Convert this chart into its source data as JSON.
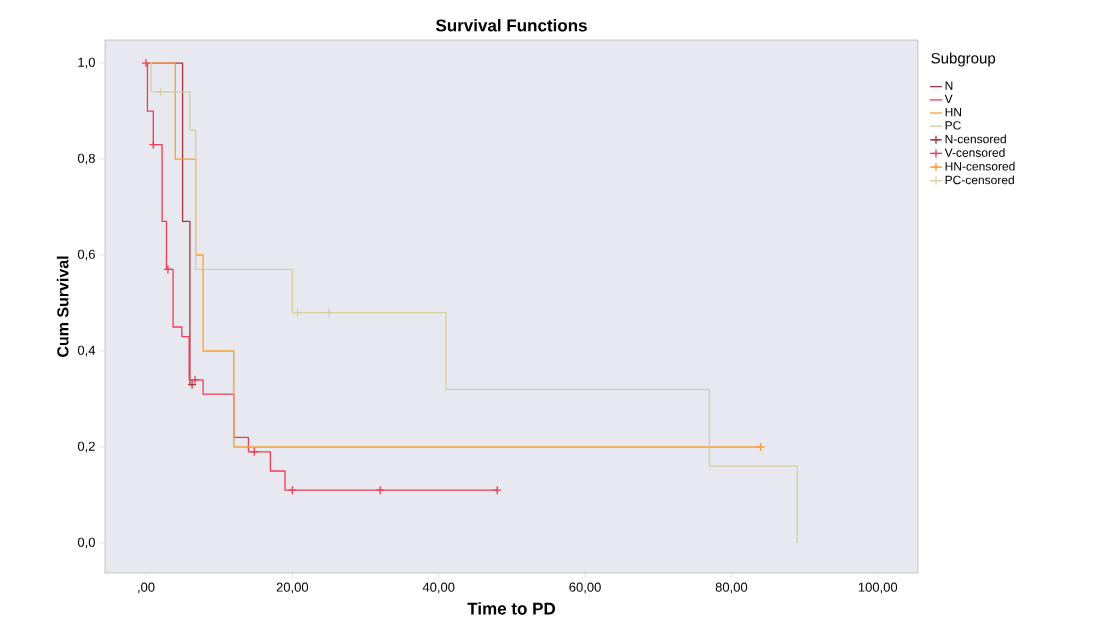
{
  "chart_data": {
    "type": "step",
    "title": "Survival Functions",
    "xlabel": "Time to PD",
    "ylabel": "Cum Survival",
    "legend_title": "Subgroup",
    "legend": "top right",
    "xlim": [
      -5.6,
      105.5
    ],
    "ylim": [
      -0.0625,
      1.048
    ],
    "xticks": [
      {
        "value": 0,
        "label": ",00"
      },
      {
        "value": 20,
        "label": "20,00"
      },
      {
        "value": 40,
        "label": "40,00"
      },
      {
        "value": 60,
        "label": "60,00"
      },
      {
        "value": 80,
        "label": "80,00"
      },
      {
        "value": 100,
        "label": "100,00"
      }
    ],
    "yticks": [
      {
        "value": 0,
        "label": "0,0"
      },
      {
        "value": 0.2,
        "label": "0,2"
      },
      {
        "value": 0.4,
        "label": "0,4"
      },
      {
        "value": 0.6,
        "label": "0,6"
      },
      {
        "value": 0.8,
        "label": "0,8"
      },
      {
        "value": 1,
        "label": "1,0"
      }
    ],
    "series": [
      {
        "name": "N",
        "marker": "none",
        "color": "#a8343c",
        "x": [
          0,
          5,
          6,
          6.3
        ],
        "values": [
          1,
          0.67,
          0.33,
          0.33
        ]
      },
      {
        "name": "V",
        "marker": "none",
        "color": "#f03c50",
        "x": [
          0,
          0.2,
          1,
          2.2,
          2.8,
          3.7,
          4.9,
          5.9,
          7.8,
          12,
          14,
          17,
          19,
          48
        ],
        "values": [
          1,
          0.9,
          0.83,
          0.67,
          0.57,
          0.45,
          0.43,
          0.34,
          0.31,
          0.22,
          0.19,
          0.15,
          0.11,
          0.11
        ]
      },
      {
        "name": "HN",
        "marker": "none",
        "color": "#f8a030",
        "x": [
          0,
          4,
          6.8,
          7.8,
          12,
          84
        ],
        "values": [
          1,
          0.8,
          0.6,
          0.4,
          0.2,
          0.2
        ]
      },
      {
        "name": "PC",
        "marker": "none",
        "color": "#d4cfa0",
        "x": [
          0,
          0.7,
          6,
          6.8,
          20,
          41,
          77,
          89
        ],
        "values": [
          1,
          0.94,
          0.86,
          0.57,
          0.48,
          0.32,
          0.16,
          0
        ]
      },
      {
        "name": "N-censored",
        "type": "scatter",
        "marker": "cross",
        "color": "#a8343c",
        "x": [
          6.3
        ],
        "values": [
          0.33
        ]
      },
      {
        "name": "V-censored",
        "type": "scatter",
        "marker": "cross",
        "color": "#f03c50",
        "x": [
          0,
          1,
          3,
          6.7,
          14.8,
          20,
          32,
          48
        ],
        "values": [
          1,
          0.83,
          0.57,
          0.34,
          0.19,
          0.11,
          0.11,
          0.11
        ]
      },
      {
        "name": "HN-censored",
        "type": "scatter",
        "marker": "cross",
        "color": "#f8a030",
        "x": [
          84
        ],
        "values": [
          0.2
        ]
      },
      {
        "name": "PC-censored",
        "type": "scatter",
        "marker": "cross",
        "color": "#d4cfa0",
        "x": [
          2,
          20.7,
          25
        ],
        "values": [
          0.94,
          0.48,
          0.48
        ]
      }
    ]
  }
}
